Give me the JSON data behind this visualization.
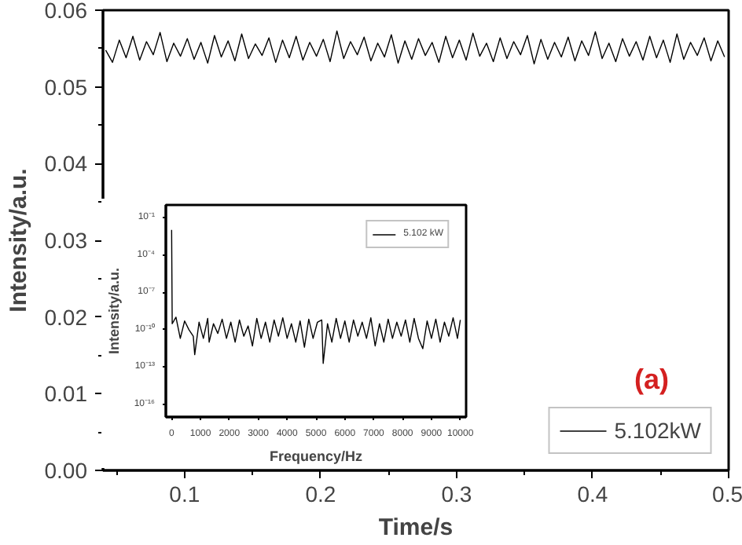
{
  "chart_data": [
    {
      "type": "line",
      "xlabel": "Time/s",
      "ylabel": "Intensity/a.u.",
      "xlim": [
        0.04,
        0.5
      ],
      "ylim": [
        0,
        0.06
      ],
      "xticks": [
        0.1,
        0.2,
        0.3,
        0.4,
        0.5
      ],
      "yticks": [
        {
          "value": 0,
          "label": "0.00"
        },
        {
          "value": 0.01,
          "label": "0.01"
        },
        {
          "value": 0.02,
          "label": "0.02"
        },
        {
          "value": 0.03,
          "label": "0.03"
        },
        {
          "value": 0.04,
          "label": "0.04"
        },
        {
          "value": 0.05,
          "label": "0.05"
        },
        {
          "value": 0.06,
          "label": "0.06"
        }
      ],
      "grid": false,
      "legend": "bottom right",
      "annotations": [
        "(a)"
      ],
      "x": [
        0.042,
        0.047,
        0.052,
        0.057,
        0.062,
        0.067,
        0.072,
        0.077,
        0.082,
        0.087,
        0.092,
        0.097,
        0.102,
        0.107,
        0.112,
        0.117,
        0.122,
        0.127,
        0.132,
        0.137,
        0.142,
        0.147,
        0.152,
        0.157,
        0.162,
        0.167,
        0.172,
        0.177,
        0.182,
        0.187,
        0.192,
        0.197,
        0.202,
        0.207,
        0.212,
        0.217,
        0.222,
        0.227,
        0.232,
        0.237,
        0.242,
        0.247,
        0.252,
        0.257,
        0.262,
        0.267,
        0.272,
        0.277,
        0.282,
        0.287,
        0.292,
        0.297,
        0.302,
        0.307,
        0.312,
        0.317,
        0.322,
        0.327,
        0.332,
        0.337,
        0.342,
        0.347,
        0.352,
        0.357,
        0.362,
        0.367,
        0.372,
        0.377,
        0.382,
        0.387,
        0.392,
        0.397,
        0.402,
        0.407,
        0.412,
        0.417,
        0.422,
        0.427,
        0.432,
        0.437,
        0.442,
        0.447,
        0.452,
        0.457,
        0.462,
        0.467,
        0.472,
        0.477,
        0.482,
        0.487,
        0.492,
        0.497
      ],
      "series": [
        {
          "name": "5.102kW",
          "color": "#000000",
          "values": [
            0.0548,
            0.0532,
            0.0561,
            0.0538,
            0.0566,
            0.0535,
            0.0559,
            0.0542,
            0.0571,
            0.0533,
            0.0557,
            0.054,
            0.0563,
            0.0536,
            0.0558,
            0.0531,
            0.0567,
            0.0539,
            0.056,
            0.0534,
            0.0569,
            0.0537,
            0.0556,
            0.0541,
            0.0564,
            0.0532,
            0.0561,
            0.0538,
            0.0566,
            0.0535,
            0.0558,
            0.054,
            0.0562,
            0.0533,
            0.0573,
            0.0537,
            0.0559,
            0.0542,
            0.0565,
            0.0534,
            0.0557,
            0.0539,
            0.0568,
            0.0531,
            0.056,
            0.0536,
            0.0563,
            0.0541,
            0.0558,
            0.0532,
            0.0566,
            0.0538,
            0.0561,
            0.0535,
            0.057,
            0.054,
            0.0557,
            0.0533,
            0.0564,
            0.0537,
            0.0559,
            0.0542,
            0.0567,
            0.053,
            0.0562,
            0.0536,
            0.0558,
            0.0539,
            0.0565,
            0.0534,
            0.056,
            0.0541,
            0.0572,
            0.0537,
            0.0557,
            0.0533,
            0.0563,
            0.054,
            0.0559,
            0.0535,
            0.0566,
            0.0538,
            0.0561,
            0.0532,
            0.0569,
            0.0536,
            0.0558,
            0.0541,
            0.0564,
            0.0534,
            0.056,
            0.0539
          ]
        }
      ]
    },
    {
      "type": "line",
      "xlabel": "Frequency/Hz",
      "ylabel": "Intensity/a.u.",
      "log": "y",
      "xlim": [
        -200,
        10200
      ],
      "ylim": [
        1e-17,
        1
      ],
      "xticks": [
        0,
        1000,
        2000,
        3000,
        4000,
        5000,
        6000,
        7000,
        8000,
        9000,
        10000
      ],
      "yticks": [
        {
          "value": 0.1,
          "label": "10⁻¹"
        },
        {
          "value": 0.0001,
          "label": "10⁻⁴"
        },
        {
          "value": 1e-07,
          "label": "10⁻⁷"
        },
        {
          "value": 1e-10,
          "label": "10⁻¹⁰"
        },
        {
          "value": 1e-13,
          "label": "10⁻¹³"
        },
        {
          "value": 1e-16,
          "label": "10⁻¹⁶"
        }
      ],
      "grid": false,
      "legend": "top right",
      "x": [
        0,
        20,
        150,
        300,
        450,
        600,
        750,
        800,
        950,
        1100,
        1250,
        1300,
        1450,
        1600,
        1750,
        1900,
        2050,
        2200,
        2350,
        2500,
        2650,
        2800,
        2950,
        3100,
        3250,
        3400,
        3550,
        3700,
        3850,
        4000,
        4150,
        4300,
        4450,
        4600,
        4750,
        4900,
        5050,
        5200,
        5250,
        5400,
        5550,
        5700,
        5850,
        6000,
        6150,
        6300,
        6450,
        6600,
        6750,
        6900,
        7050,
        7200,
        7350,
        7500,
        7650,
        7800,
        7950,
        8100,
        8250,
        8400,
        8550,
        8700,
        8850,
        9000,
        9150,
        9300,
        9450,
        9600,
        9750,
        9900,
        10000
      ],
      "series": [
        {
          "name": "5.102 kW",
          "color": "#000000",
          "values": [
            0.01,
            3e-10,
            1e-09,
            2e-11,
            5e-10,
            1e-10,
            3e-11,
            1e-12,
            4e-10,
            2e-11,
            8e-10,
            1e-11,
            3e-10,
            5e-11,
            7e-10,
            2e-11,
            4e-10,
            1e-11,
            6e-10,
            3e-11,
            2e-10,
            5e-12,
            8e-10,
            2e-11,
            4e-10,
            1e-11,
            6e-10,
            3e-11,
            9e-10,
            2e-11,
            3e-10,
            1e-11,
            5e-10,
            4e-12,
            7e-10,
            2e-11,
            4e-10,
            6e-10,
            2e-13,
            3e-10,
            1e-11,
            8e-10,
            2e-11,
            5e-10,
            1e-11,
            6e-10,
            3e-11,
            4e-10,
            2e-11,
            9e-10,
            5e-12,
            3e-10,
            1e-11,
            7e-10,
            2e-11,
            4e-10,
            3e-11,
            6e-10,
            1e-11,
            8e-10,
            2e-11,
            3e-12,
            5e-10,
            2e-11,
            7e-10,
            1e-11,
            4e-10,
            3e-11,
            9e-10,
            2e-11,
            6e-10
          ]
        }
      ]
    }
  ]
}
